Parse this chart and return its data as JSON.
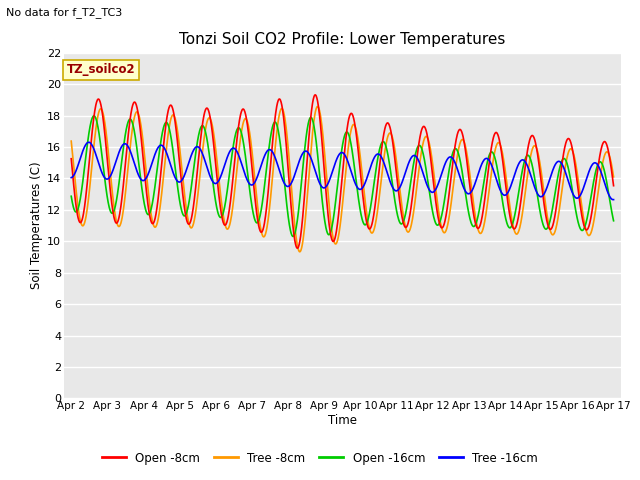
{
  "title": "Tonzi Soil CO2 Profile: Lower Temperatures",
  "subtitle": "No data for f_T2_TC3",
  "ylabel": "Soil Temperatures (C)",
  "xlabel": "Time",
  "ylim": [
    0,
    22
  ],
  "yticks": [
    0,
    2,
    4,
    6,
    8,
    10,
    12,
    14,
    16,
    18,
    20,
    22
  ],
  "x_labels": [
    "Apr 2",
    "Apr 3",
    "Apr 4",
    "Apr 5",
    "Apr 6",
    "Apr 7",
    "Apr 8",
    "Apr 9",
    "Apr 10",
    "Apr 11",
    "Apr 12",
    "Apr 13",
    "Apr 14",
    "Apr 15",
    "Apr 16",
    "Apr 17"
  ],
  "legend_label": "TZ_soilco2",
  "series_labels": [
    "Open -8cm",
    "Tree -8cm",
    "Open -16cm",
    "Tree -16cm"
  ],
  "series_colors": [
    "#ff0000",
    "#ff9900",
    "#00cc00",
    "#0000ff"
  ],
  "bg_color": "#ffffff",
  "plot_bg_color": "#e8e8e8",
  "grid_color": "#ffffff"
}
